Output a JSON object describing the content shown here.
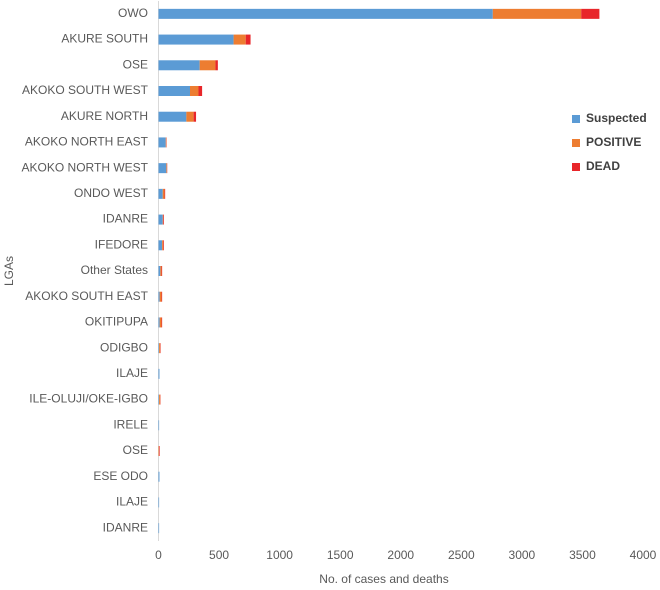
{
  "chart_data": {
    "type": "stacked-bar-horizontal",
    "x_label": "No. of cases and deaths",
    "y_label": "LGAs",
    "categories": [
      "OWO",
      "AKURE SOUTH",
      "OSE",
      "AKOKO SOUTH WEST",
      "AKURE NORTH",
      "AKOKO NORTH EAST",
      "AKOKO NORTH WEST",
      "ONDO WEST",
      "IDANRE",
      "IFEDORE",
      "Other States",
      "AKOKO SOUTH EAST",
      "OKITIPUPA",
      "ODIGBO",
      "ILAJE",
      "ILE-OLUJI/OKE-IGBO",
      "IRELE",
      "OSE",
      "ESE ODO",
      "ILAJE",
      "IDANRE"
    ],
    "series": [
      {
        "name": "Suspected",
        "color": "#5b9bd5",
        "values": [
          2760,
          620,
          340,
          260,
          230,
          60,
          65,
          35,
          35,
          30,
          15,
          10,
          10,
          5,
          8,
          5,
          5,
          0,
          8,
          5,
          5
        ]
      },
      {
        "name": "POSITIVE",
        "color": "#ed7d31",
        "values": [
          730,
          100,
          130,
          70,
          60,
          5,
          5,
          15,
          5,
          10,
          10,
          15,
          15,
          10,
          0,
          10,
          0,
          5,
          0,
          0,
          0
        ]
      },
      {
        "name": "DEAD",
        "color": "#e8262a",
        "values": [
          150,
          40,
          20,
          30,
          20,
          2,
          2,
          5,
          5,
          5,
          5,
          5,
          5,
          3,
          0,
          2,
          0,
          5,
          0,
          0,
          0
        ]
      }
    ],
    "xlim": [
      0,
      4000
    ],
    "xticks": [
      0,
      500,
      1000,
      1500,
      2000,
      2500,
      3000,
      3500,
      4000
    ],
    "legend": "right"
  }
}
